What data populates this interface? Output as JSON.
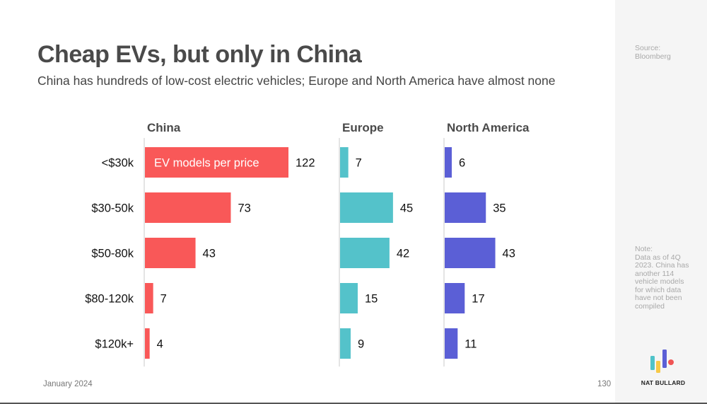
{
  "header": {
    "title": "Cheap EVs, but only in China",
    "subtitle": "China has hundreds of low-cost electric vehicles; Europe and North America have almost none"
  },
  "footer": {
    "date": "January 2024",
    "page_number": "130"
  },
  "sidebar": {
    "source_label": "Source:",
    "source": "Bloomberg",
    "note_label": "Note:",
    "note": "Data as of 4Q 2023. China has another 114 vehicle models for which data have not been compiled",
    "brand": "NAT BULLARD",
    "logo_colors": [
      "#4fc3c9",
      "#f7c948",
      "#5b5fd6",
      "#f05454"
    ]
  },
  "chart_data": {
    "type": "bar",
    "orientation": "horizontal",
    "title": "Cheap EVs, but only in China",
    "annotation": "EV models per price",
    "categories": [
      "<$30k",
      "$30-50k",
      "$50-80k",
      "$80-120k",
      "$120k+"
    ],
    "series": [
      {
        "name": "China",
        "color": "#f95858",
        "values": [
          122,
          73,
          43,
          7,
          4
        ]
      },
      {
        "name": "Europe",
        "color": "#54c2ca",
        "values": [
          7,
          45,
          42,
          15,
          9
        ]
      },
      {
        "name": "North America",
        "color": "#5b5fd6",
        "values": [
          6,
          35,
          43,
          17,
          11
        ]
      }
    ],
    "xlabel": "",
    "ylabel": "",
    "grid": false,
    "legend": "none"
  }
}
